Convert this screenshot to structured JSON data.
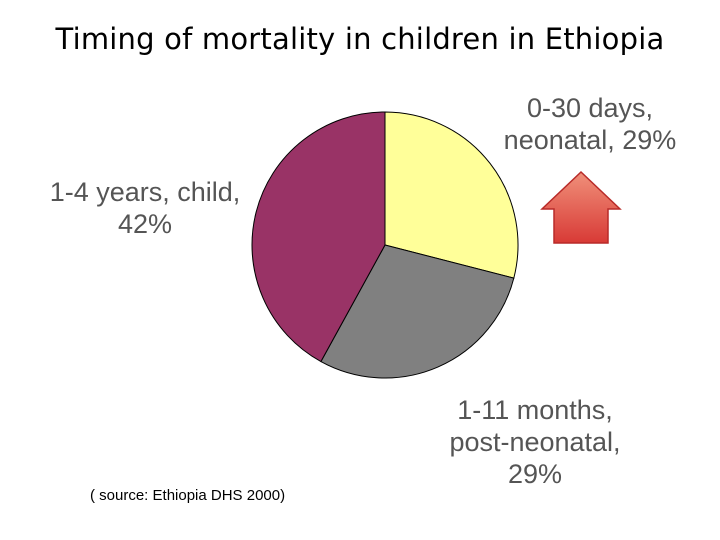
{
  "title": "Timing of mortality in children in Ethiopia",
  "source_note": "( source: Ethiopia DHS 2000)",
  "chart_data": {
    "type": "pie",
    "slices": [
      {
        "label_lines": [
          "0-30 days,",
          "neonatal, 29%"
        ],
        "value": 29,
        "color": "#FFFF99"
      },
      {
        "label_lines": [
          "1-11 months,",
          "post-neonatal,",
          "29%"
        ],
        "value": 29,
        "color": "#808080"
      },
      {
        "label_lines": [
          "1-4 years, child,",
          "42%"
        ],
        "value": 42,
        "color": "#993366"
      }
    ],
    "start_angle_deg": 0,
    "direction": "clockwise",
    "legend": "none",
    "annotation": {
      "type": "arrow",
      "direction": "up",
      "color": "#E0403A",
      "points_to": "0-30 days, neonatal, 29%"
    }
  }
}
